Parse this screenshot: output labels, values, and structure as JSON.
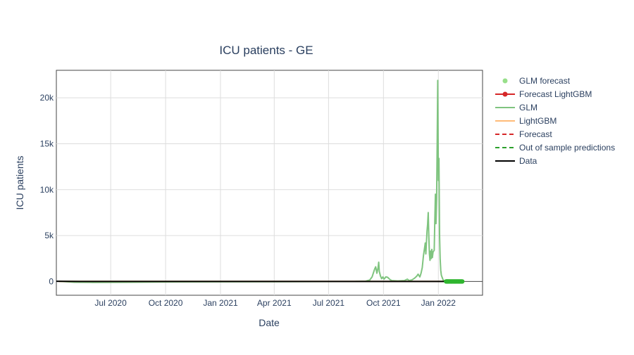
{
  "chart_data": {
    "type": "line",
    "title": "ICU patients - GE",
    "xlabel": "Date",
    "ylabel": "ICU patients",
    "x_range": [
      "2020-04-01",
      "2022-03-16"
    ],
    "y_range": [
      -1500,
      23000
    ],
    "x_ticks": [
      {
        "date": "2020-07-01",
        "label": "Jul 2020"
      },
      {
        "date": "2020-10-01",
        "label": "Oct 2020"
      },
      {
        "date": "2021-01-01",
        "label": "Jan 2021"
      },
      {
        "date": "2021-04-01",
        "label": "Apr 2021"
      },
      {
        "date": "2021-07-01",
        "label": "Jul 2021"
      },
      {
        "date": "2021-10-01",
        "label": "Oct 2021"
      },
      {
        "date": "2022-01-01",
        "label": "Jan 2022"
      }
    ],
    "y_ticks": [
      {
        "value": 0,
        "label": "0"
      },
      {
        "value": 5000,
        "label": "5k"
      },
      {
        "value": 10000,
        "label": "10k"
      },
      {
        "value": 15000,
        "label": "15k"
      },
      {
        "value": 20000,
        "label": "20k"
      }
    ],
    "grid": true,
    "legend_position": "right",
    "legend": [
      {
        "name": "GLM forecast",
        "style": "marker",
        "color": "#98df8a"
      },
      {
        "name": "Forecast LightGBM",
        "style": "line-marker",
        "color": "#d62728"
      },
      {
        "name": "GLM",
        "style": "line",
        "color": "#7fc47f"
      },
      {
        "name": "LightGBM",
        "style": "line",
        "color": "#ffbb78"
      },
      {
        "name": "Forecast",
        "style": "dash",
        "color": "#d62728"
      },
      {
        "name": "Out of sample predictions",
        "style": "dash",
        "color": "#2ca02c"
      },
      {
        "name": "Data",
        "style": "line",
        "color": "#000000"
      }
    ],
    "series": [
      {
        "name": "GLM",
        "color": "#7fc47f",
        "points": [
          [
            "2020-04-05",
            20
          ],
          [
            "2020-05-01",
            -80
          ],
          [
            "2020-06-01",
            -100
          ],
          [
            "2020-08-01",
            -80
          ],
          [
            "2020-10-01",
            -50
          ],
          [
            "2021-01-01",
            -40
          ],
          [
            "2021-04-01",
            -20
          ],
          [
            "2021-07-01",
            -10
          ],
          [
            "2021-08-15",
            0
          ],
          [
            "2021-09-01",
            30
          ],
          [
            "2021-09-08",
            150
          ],
          [
            "2021-09-12",
            500
          ],
          [
            "2021-09-16",
            1300
          ],
          [
            "2021-09-18",
            1600
          ],
          [
            "2021-09-20",
            900
          ],
          [
            "2021-09-22",
            1500
          ],
          [
            "2021-09-23",
            2100
          ],
          [
            "2021-09-24",
            1100
          ],
          [
            "2021-09-26",
            600
          ],
          [
            "2021-09-28",
            300
          ],
          [
            "2021-09-30",
            500
          ],
          [
            "2021-10-02",
            250
          ],
          [
            "2021-10-05",
            500
          ],
          [
            "2021-10-08",
            450
          ],
          [
            "2021-10-12",
            200
          ],
          [
            "2021-10-15",
            100
          ],
          [
            "2021-10-25",
            60
          ],
          [
            "2021-11-05",
            100
          ],
          [
            "2021-11-10",
            250
          ],
          [
            "2021-11-13",
            100
          ],
          [
            "2021-11-18",
            180
          ],
          [
            "2021-11-22",
            350
          ],
          [
            "2021-11-26",
            600
          ],
          [
            "2021-11-28",
            800
          ],
          [
            "2021-12-01",
            500
          ],
          [
            "2021-12-03",
            900
          ],
          [
            "2021-12-05",
            1500
          ],
          [
            "2021-12-07",
            2800
          ],
          [
            "2021-12-09",
            3700
          ],
          [
            "2021-12-10",
            4200
          ],
          [
            "2021-12-11",
            3000
          ],
          [
            "2021-12-12",
            4300
          ],
          [
            "2021-12-13",
            5500
          ],
          [
            "2021-12-14",
            6200
          ],
          [
            "2021-12-15",
            7500
          ],
          [
            "2021-12-16",
            5000
          ],
          [
            "2021-12-17",
            3000
          ],
          [
            "2021-12-18",
            2300
          ],
          [
            "2021-12-19",
            3300
          ],
          [
            "2021-12-20",
            2500
          ],
          [
            "2021-12-21",
            3500
          ],
          [
            "2021-12-22",
            2600
          ],
          [
            "2021-12-23",
            3200
          ],
          [
            "2021-12-25",
            3400
          ],
          [
            "2021-12-26",
            6500
          ],
          [
            "2021-12-27",
            9500
          ],
          [
            "2021-12-28",
            6300
          ],
          [
            "2021-12-29",
            9000
          ],
          [
            "2021-12-30",
            15000
          ],
          [
            "2021-12-31",
            21900
          ],
          [
            "2022-01-01",
            11000
          ],
          [
            "2022-01-02",
            13400
          ],
          [
            "2022-01-03",
            5000
          ],
          [
            "2022-01-04",
            2500
          ],
          [
            "2022-01-05",
            1200
          ],
          [
            "2022-01-06",
            700
          ],
          [
            "2022-01-07",
            500
          ],
          [
            "2022-01-09",
            150
          ],
          [
            "2022-01-12",
            50
          ],
          [
            "2022-01-14",
            20
          ]
        ]
      },
      {
        "name": "LightGBM",
        "color": "#ffbb78",
        "points": [
          [
            "2020-04-05",
            10
          ],
          [
            "2022-01-14",
            10
          ]
        ]
      },
      {
        "name": "Data",
        "color": "#000000",
        "points": [
          [
            "2020-04-01",
            20
          ],
          [
            "2020-04-20",
            10
          ],
          [
            "2020-05-10",
            0
          ],
          [
            "2022-01-14",
            0
          ]
        ]
      },
      {
        "name": "Out of sample predictions",
        "color": "#2ca02c",
        "points": [
          [
            "2022-01-14",
            0
          ],
          [
            "2022-02-10",
            0
          ]
        ]
      },
      {
        "name": "Forecast",
        "color": "#d62728",
        "points": [
          [
            "2022-01-14",
            0
          ],
          [
            "2022-02-10",
            0
          ]
        ]
      },
      {
        "name": "Forecast LightGBM",
        "color": "#d62728",
        "points": [
          [
            "2022-01-14",
            0
          ],
          [
            "2022-02-10",
            0
          ]
        ]
      }
    ],
    "glm_forecast_markers": {
      "color": "#2fb52f",
      "start": "2022-01-14",
      "count": 28,
      "value": 0
    }
  }
}
